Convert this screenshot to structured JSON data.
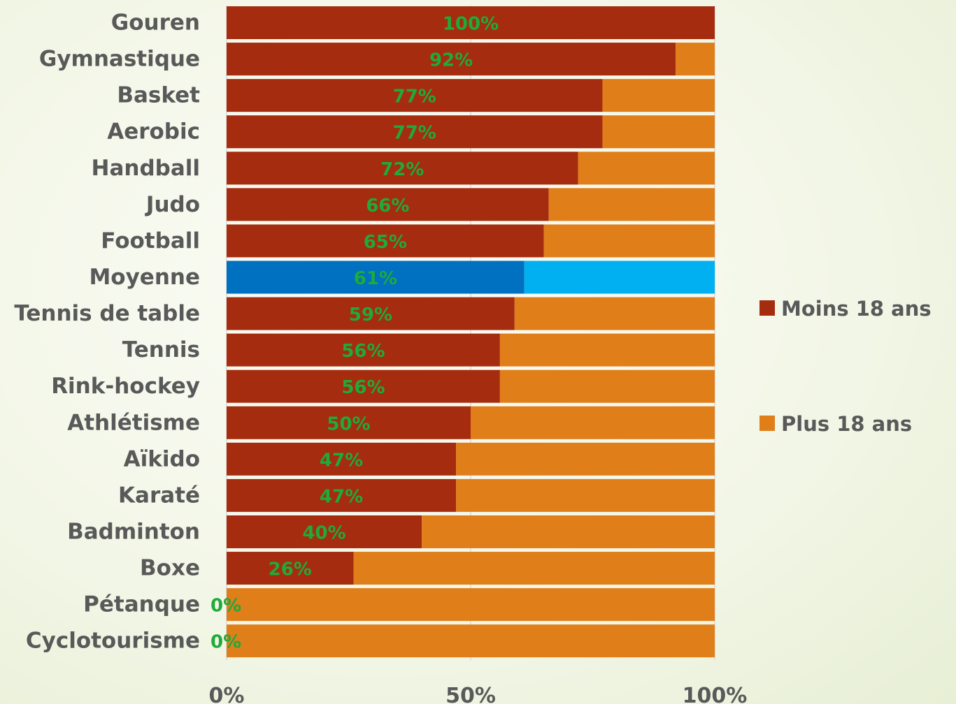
{
  "chart_data": {
    "type": "bar",
    "orientation": "horizontal",
    "stacked": "percent",
    "categories": [
      "Gouren",
      "Gymnastique",
      "Basket",
      "Aerobic",
      "Handball",
      "Judo",
      "Football",
      "Moyenne",
      "Tennis de table",
      "Tennis",
      "Rink-hockey",
      "Athlétisme",
      "Aïkido",
      "Karaté",
      "Badminton",
      "Boxe",
      "Pétanque",
      "Cyclotourisme"
    ],
    "series": [
      {
        "name": "Moins 18 ans",
        "color": "#a52c0e",
        "values": [
          100,
          92,
          77,
          77,
          72,
          66,
          65,
          61,
          59,
          56,
          56,
          50,
          47,
          47,
          40,
          26,
          0,
          0
        ]
      },
      {
        "name": "Plus 18 ans",
        "color": "#e07e1a",
        "values": [
          0,
          8,
          23,
          23,
          28,
          34,
          35,
          39,
          41,
          44,
          44,
          50,
          53,
          53,
          60,
          74,
          100,
          100
        ]
      }
    ],
    "data_labels": [
      "100%",
      "92%",
      "77%",
      "77%",
      "72%",
      "66%",
      "65%",
      "61%",
      "59%",
      "56%",
      "56%",
      "50%",
      "47%",
      "47%",
      "40%",
      "26%",
      "0%",
      "0%"
    ],
    "highlight": {
      "category": "Moyenne",
      "colors": [
        "#0070c0",
        "#00b0f0"
      ]
    },
    "x_ticks": [
      "0%",
      "50%",
      "100%"
    ],
    "xlim": [
      0,
      100
    ],
    "grid": true,
    "legend_position": "right",
    "title": "",
    "xlabel": "",
    "ylabel": ""
  }
}
